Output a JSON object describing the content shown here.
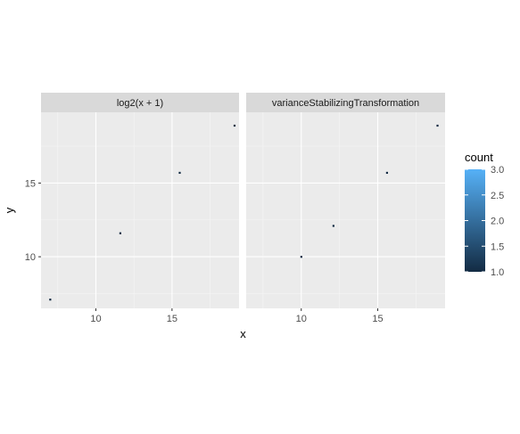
{
  "chart_data": {
    "type": "heatmap",
    "xlabel": "x",
    "ylabel": "y",
    "xlim": [
      6.4,
      19.4
    ],
    "ylim": [
      6.5,
      19.8
    ],
    "x_ticks": [
      10,
      15
    ],
    "y_ticks": [
      10,
      15
    ],
    "facets": [
      {
        "label": "log2(x + 1)",
        "points": [
          {
            "x": 7.0,
            "y": 7.1,
            "count": 1
          },
          {
            "x": 11.6,
            "y": 11.6,
            "count": 1
          },
          {
            "x": 15.5,
            "y": 15.7,
            "count": 1
          },
          {
            "x": 19.1,
            "y": 18.9,
            "count": 1
          }
        ]
      },
      {
        "label": "varianceStabilizingTransformation",
        "points": [
          {
            "x": 10.0,
            "y": 10.0,
            "count": 1
          },
          {
            "x": 12.1,
            "y": 12.1,
            "count": 1
          },
          {
            "x": 15.6,
            "y": 15.7,
            "count": 1
          },
          {
            "x": 18.9,
            "y": 18.9,
            "count": 1
          }
        ]
      }
    ],
    "legend": {
      "title": "count",
      "breaks": [
        "1.0",
        "1.5",
        "2.0",
        "2.5",
        "3.0"
      ],
      "range": [
        1.0,
        3.0
      ],
      "color_low": "#132B43",
      "color_high": "#56B1F7"
    },
    "grid": true
  }
}
